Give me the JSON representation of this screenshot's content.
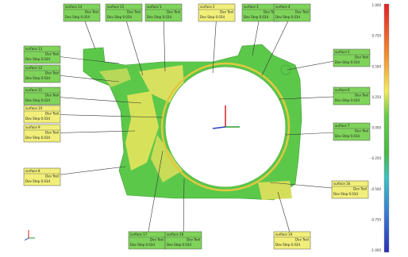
{
  "legend": {
    "ticks": [
      "1.000",
      "0.750",
      "0.500",
      "0.250",
      "0.000",
      "-0.250",
      "-0.500",
      "-0.750",
      "-1.000"
    ]
  },
  "annotations": [
    {
      "name": "surface 14",
      "tool": "Dev Tool",
      "step": "Dev Step 0.034",
      "color": "#7fd35a"
    },
    {
      "name": "surface 15",
      "tool": "Dev Tool",
      "step": "Dev Step 0.034",
      "color": "#7fd35a"
    },
    {
      "name": "surface 1",
      "tool": "Dev Tool",
      "step": "Dev Step 0.034",
      "color": "#7fd35a"
    },
    {
      "name": "surface 2",
      "tool": "Dev Tool",
      "step": "Dev Step 0.034",
      "color": "#f1ef7a"
    },
    {
      "name": "surface 3",
      "tool": "Dev Tool",
      "step": "Dev Step 0.034",
      "color": "#7fd35a"
    },
    {
      "name": "surface 4",
      "tool": "Dev Tool",
      "step": "Dev Step 0.034",
      "color": "#7fd35a"
    },
    {
      "name": "surface 13",
      "tool": "Dev Tool",
      "step": "Dev Step 0.034",
      "color": "#7fd35a"
    },
    {
      "name": "surface 12",
      "tool": "Dev Tool",
      "step": "Dev Step 0.034",
      "color": "#7fd35a"
    },
    {
      "name": "surface 11",
      "tool": "Dev Tool",
      "step": "Dev Step 0.034",
      "color": "#7fd35a"
    },
    {
      "name": "surface 10",
      "tool": "Dev Tool",
      "step": "Dev Step 0.034",
      "color": "#f1ef7a"
    },
    {
      "name": "surface 9",
      "tool": "Dev Tool",
      "step": "Dev Step 0.034",
      "color": "#f1ef7a"
    },
    {
      "name": "surface 8",
      "tool": "Dev Tool",
      "step": "Dev Step 0.034",
      "color": "#f1ef7a"
    },
    {
      "name": "surface 5",
      "tool": "Dev Tool",
      "step": "Dev Step 0.034",
      "color": "#7fd35a"
    },
    {
      "name": "surface 6",
      "tool": "Dev Tool",
      "step": "Dev Step 0.034",
      "color": "#7fd35a"
    },
    {
      "name": "surface 7",
      "tool": "Dev Tool",
      "step": "Dev Step 0.034",
      "color": "#7fd35a"
    },
    {
      "name": "surface 16",
      "tool": "Dev Tool",
      "step": "Dev Step 0.034",
      "color": "#f1ef7a"
    },
    {
      "name": "surface 17",
      "tool": "Dev Tool",
      "step": "Dev Step 0.034",
      "color": "#7fd35a"
    },
    {
      "name": "surface 18",
      "tool": "Dev Tool",
      "step": "Dev Step 0.034",
      "color": "#7fd35a"
    },
    {
      "name": "surface 19",
      "tool": "Dev Tool",
      "step": "Dev Step 0.034",
      "color": "#f1ef7a"
    }
  ]
}
